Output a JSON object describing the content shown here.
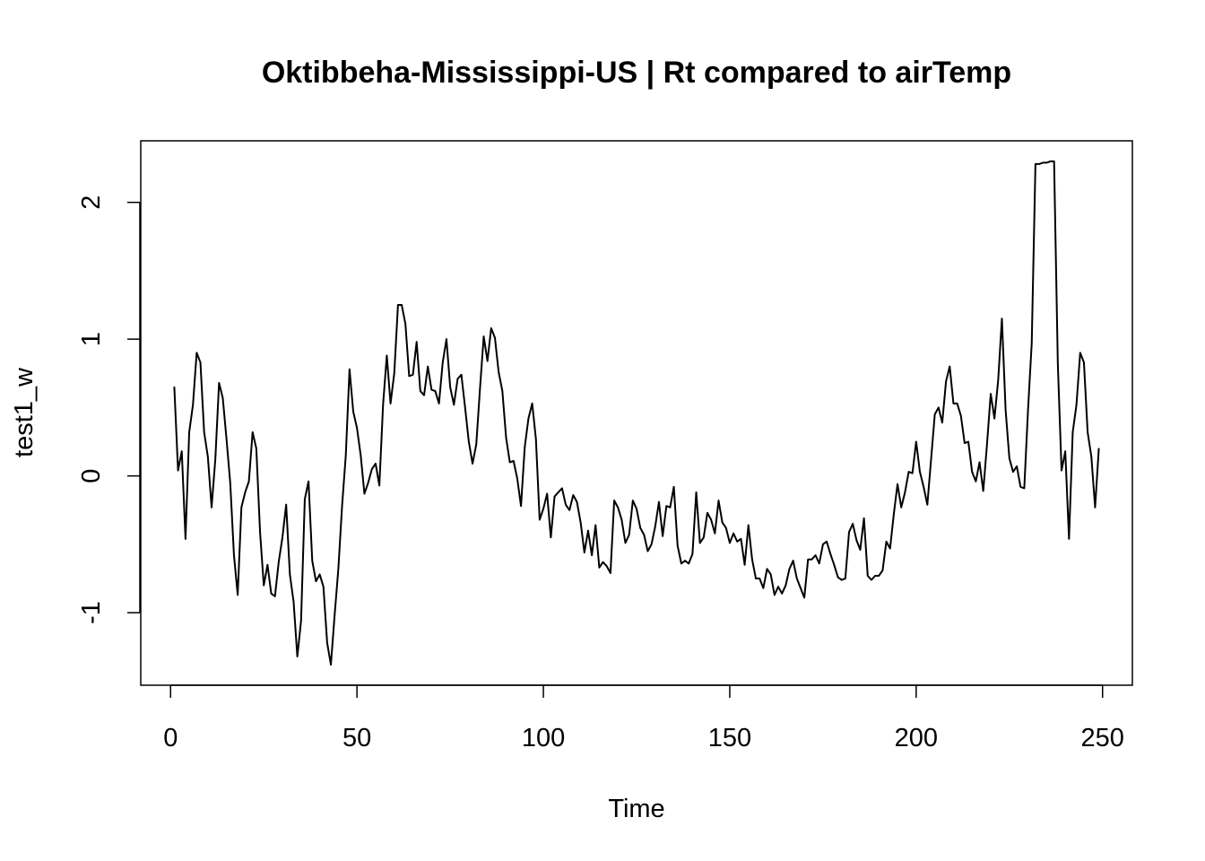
{
  "chart_data": {
    "type": "line",
    "title": "Oktibbeha-Mississippi-US | Rt compared to airTemp",
    "xlabel": "Time",
    "ylabel": "test1_w",
    "xlim": [
      -8,
      258
    ],
    "ylim": [
      -1.53,
      2.45
    ],
    "x_ticks": [
      0,
      50,
      100,
      150,
      200,
      250
    ],
    "y_ticks": [
      -1,
      0,
      1,
      2
    ],
    "grid": false,
    "legend": "none",
    "line_color": "#000000",
    "series": [
      {
        "x_start": 1,
        "values": [
          0.65,
          0.04,
          0.18,
          -0.46,
          0.32,
          0.52,
          0.9,
          0.83,
          0.32,
          0.14,
          -0.23,
          0.12,
          0.68,
          0.57,
          0.27,
          -0.05,
          -0.58,
          -0.87,
          -0.23,
          -0.12,
          -0.04,
          0.32,
          0.2,
          -0.41,
          -0.8,
          -0.65,
          -0.86,
          -0.88,
          -0.63,
          -0.45,
          -0.21,
          -0.72,
          -0.92,
          -1.32,
          -1.06,
          -0.17,
          -0.04,
          -0.62,
          -0.77,
          -0.72,
          -0.81,
          -1.22,
          -1.38,
          -1.02,
          -0.68,
          -0.22,
          0.15,
          0.78,
          0.47,
          0.35,
          0.15,
          -0.13,
          -0.05,
          0.05,
          0.09,
          -0.07,
          0.52,
          0.88,
          0.53,
          0.75,
          1.25,
          1.25,
          1.11,
          0.73,
          0.74,
          0.98,
          0.62,
          0.59,
          0.8,
          0.63,
          0.62,
          0.53,
          0.83,
          1.0,
          0.65,
          0.52,
          0.71,
          0.74,
          0.5,
          0.25,
          0.09,
          0.23,
          0.64,
          1.02,
          0.84,
          1.08,
          1.01,
          0.76,
          0.62,
          0.28,
          0.1,
          0.11,
          -0.02,
          -0.22,
          0.21,
          0.42,
          0.53,
          0.27,
          -0.32,
          -0.24,
          -0.13,
          -0.45,
          -0.15,
          -0.12,
          -0.09,
          -0.21,
          -0.25,
          -0.14,
          -0.19,
          -0.34,
          -0.56,
          -0.4,
          -0.58,
          -0.36,
          -0.67,
          -0.63,
          -0.66,
          -0.71,
          -0.18,
          -0.23,
          -0.32,
          -0.49,
          -0.43,
          -0.18,
          -0.24,
          -0.38,
          -0.43,
          -0.55,
          -0.5,
          -0.37,
          -0.19,
          -0.44,
          -0.22,
          -0.23,
          -0.08,
          -0.51,
          -0.64,
          -0.62,
          -0.64,
          -0.57,
          -0.12,
          -0.49,
          -0.45,
          -0.27,
          -0.32,
          -0.42,
          -0.18,
          -0.34,
          -0.38,
          -0.49,
          -0.42,
          -0.48,
          -0.46,
          -0.65,
          -0.36,
          -0.61,
          -0.75,
          -0.75,
          -0.82,
          -0.68,
          -0.72,
          -0.87,
          -0.81,
          -0.86,
          -0.8,
          -0.68,
          -0.62,
          -0.75,
          -0.82,
          -0.89,
          -0.61,
          -0.61,
          -0.58,
          -0.64,
          -0.5,
          -0.48,
          -0.57,
          -0.65,
          -0.74,
          -0.76,
          -0.75,
          -0.41,
          -0.35,
          -0.47,
          -0.54,
          -0.31,
          -0.73,
          -0.76,
          -0.73,
          -0.73,
          -0.69,
          -0.48,
          -0.53,
          -0.28,
          -0.06,
          -0.23,
          -0.12,
          0.03,
          0.02,
          0.25,
          0.03,
          -0.08,
          -0.21,
          0.12,
          0.45,
          0.5,
          0.39,
          0.69,
          0.8,
          0.53,
          0.53,
          0.44,
          0.24,
          0.25,
          0.03,
          -0.04,
          0.1,
          -0.11,
          0.23,
          0.6,
          0.42,
          0.7,
          1.15,
          0.48,
          0.13,
          0.03,
          0.07,
          -0.08,
          -0.09,
          0.48,
          0.97,
          2.28,
          2.28,
          2.29,
          2.29,
          2.3,
          2.3,
          0.82,
          0.04,
          0.18,
          -0.46,
          0.32,
          0.52,
          0.9,
          0.83,
          0.32,
          0.14,
          -0.23,
          0.2
        ]
      }
    ]
  }
}
